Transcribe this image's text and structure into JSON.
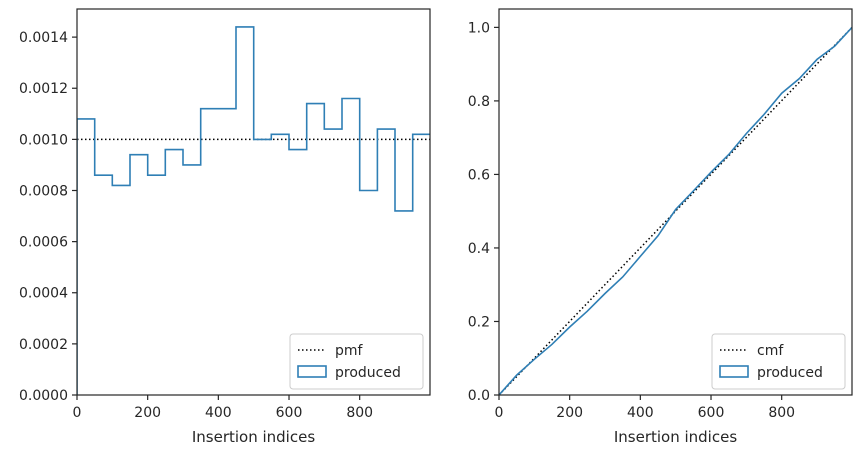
{
  "chart_data": [
    {
      "type": "histogram",
      "xlabel": "Insertion indices",
      "ylabel": "",
      "xlim": [
        0,
        999
      ],
      "ylim": [
        0,
        0.00151
      ],
      "xticks": [
        0,
        200,
        400,
        600,
        800
      ],
      "xtick_labels": [
        "0",
        "200",
        "400",
        "600",
        "800"
      ],
      "yticks": [
        0,
        0.0002,
        0.0004,
        0.0006,
        0.0008,
        0.001,
        0.0012,
        0.0014
      ],
      "ytick_labels": [
        "0.0000",
        "0.0002",
        "0.0004",
        "0.0006",
        "0.0008",
        "0.0010",
        "0.0012",
        "0.0014"
      ],
      "grid": false,
      "legend_position": "lower-right",
      "bin_width": 50,
      "series": [
        {
          "name": "pmf",
          "style": "dotted",
          "color": "#000000",
          "x": [
            0,
            999
          ],
          "values": [
            0.001,
            0.001
          ]
        },
        {
          "name": "produced",
          "style": "step",
          "color": "#2f7fb5",
          "bin_edges": [
            0,
            50,
            100,
            150,
            200,
            250,
            300,
            350,
            400,
            450,
            500,
            550,
            600,
            650,
            700,
            750,
            800,
            850,
            900,
            950,
            1000
          ],
          "values": [
            0.00108,
            0.00086,
            0.00082,
            0.00094,
            0.00086,
            0.00096,
            0.0009,
            0.00112,
            0.00112,
            0.00144,
            0.001,
            0.00102,
            0.00096,
            0.00114,
            0.00104,
            0.00116,
            0.0008,
            0.00104,
            0.00072,
            0.00102
          ]
        }
      ]
    },
    {
      "type": "line",
      "xlabel": "Insertion indices",
      "ylabel": "",
      "xlim": [
        0,
        999
      ],
      "ylim": [
        0,
        1.05
      ],
      "xticks": [
        0,
        200,
        400,
        600,
        800
      ],
      "xtick_labels": [
        "0",
        "200",
        "400",
        "600",
        "800"
      ],
      "yticks": [
        0,
        0.2,
        0.4,
        0.6,
        0.8,
        1.0
      ],
      "ytick_labels": [
        "0.0",
        "0.2",
        "0.4",
        "0.6",
        "0.8",
        "1.0"
      ],
      "grid": false,
      "legend_position": "lower-right",
      "series": [
        {
          "name": "cmf",
          "style": "dotted",
          "color": "#000000",
          "x": [
            0,
            999
          ],
          "values": [
            0,
            1.0
          ]
        },
        {
          "name": "produced",
          "style": "line",
          "color": "#2f7fb5",
          "x": [
            0,
            50,
            100,
            150,
            200,
            250,
            300,
            350,
            400,
            450,
            500,
            550,
            600,
            650,
            700,
            750,
            800,
            850,
            900,
            950,
            999
          ],
          "values": [
            0,
            0.054,
            0.097,
            0.138,
            0.185,
            0.228,
            0.276,
            0.321,
            0.377,
            0.433,
            0.505,
            0.555,
            0.606,
            0.654,
            0.711,
            0.763,
            0.821,
            0.861,
            0.913,
            0.949,
            1.0
          ]
        }
      ]
    }
  ]
}
